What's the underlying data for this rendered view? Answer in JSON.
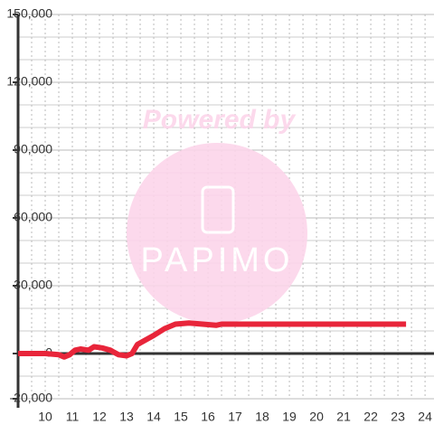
{
  "chart_data": {
    "type": "line",
    "watermark": {
      "title": "Powered by",
      "logo": "PAPIMO"
    },
    "series": [
      {
        "color": "#e8253a",
        "x": [
          9,
          10,
          10.5,
          10.7,
          10.9,
          11.1,
          11.3,
          11.6,
          11.8,
          12.1,
          12.4,
          12.7,
          13,
          13.2,
          13.4,
          13.7,
          14,
          14.4,
          14.8,
          15.3,
          15.8,
          16.3,
          16.5,
          23.3
        ],
        "values": [
          0,
          0,
          -500,
          -1500,
          -500,
          1500,
          2000,
          1500,
          3000,
          2500,
          1500,
          -500,
          -1000,
          0,
          4000,
          6000,
          8000,
          11000,
          13000,
          13500,
          13000,
          12500,
          13000,
          13000
        ]
      }
    ],
    "xlim": [
      9,
      24.33
    ],
    "xticks": [
      10,
      11,
      12,
      13,
      14,
      15,
      16,
      17,
      18,
      19,
      20,
      21,
      22,
      23,
      24
    ],
    "xgrid": [
      9.5,
      10,
      10.5,
      11,
      11.5,
      12,
      12.5,
      13,
      13.5,
      14,
      14.5,
      15,
      15.5,
      16,
      16.5,
      17,
      17.5,
      18,
      18.5,
      19,
      19.5,
      20,
      20.5,
      21,
      21.5,
      22,
      22.5,
      23,
      23.5,
      24
    ],
    "ylim": [
      -20000,
      150000
    ],
    "yticks": [
      {
        "value": -20000,
        "label": "-20,000"
      },
      0,
      {
        "value": 30000,
        "label": "30,000"
      },
      {
        "value": 60000,
        "label": "60,000"
      },
      {
        "value": 90000,
        "label": "90,000"
      },
      {
        "value": 120000,
        "label": "120,000"
      },
      {
        "value": 150000,
        "label": "150,000"
      }
    ],
    "ygrid": [
      -10000,
      10000,
      20000,
      40000,
      50000,
      70000,
      80000,
      100000,
      110000,
      130000,
      140000
    ],
    "grid": true
  }
}
